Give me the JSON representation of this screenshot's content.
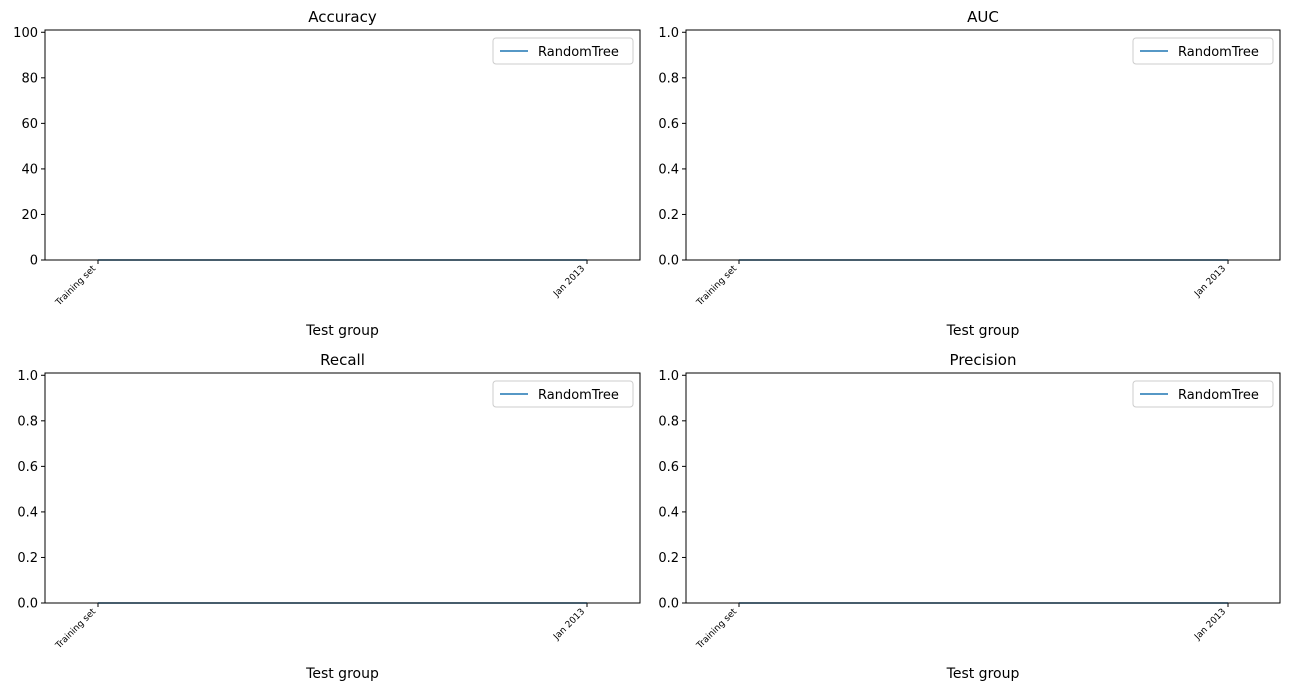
{
  "chart_data": [
    {
      "type": "line",
      "title": "Accuracy",
      "xlabel": "Test group",
      "ylabel": "",
      "categories": [
        "Training set",
        "Jan 2013"
      ],
      "yticks": [
        0,
        20,
        40,
        60,
        80,
        100
      ],
      "ytick_labels": [
        "0",
        "20",
        "40",
        "60",
        "80",
        "100"
      ],
      "ylim": [
        0,
        101
      ],
      "series": [
        {
          "name": "RandomTree",
          "values": [
            0,
            0
          ],
          "color": "#1f77b4"
        }
      ],
      "legend": "upper-right",
      "grid": false
    },
    {
      "type": "line",
      "title": "AUC",
      "xlabel": "Test group",
      "ylabel": "",
      "categories": [
        "Training set",
        "Jan 2013"
      ],
      "yticks": [
        0,
        0.2,
        0.4,
        0.6,
        0.8,
        1.0
      ],
      "ytick_labels": [
        "0.0",
        "0.2",
        "0.4",
        "0.6",
        "0.8",
        "1.0"
      ],
      "ylim": [
        0,
        1.01
      ],
      "series": [
        {
          "name": "RandomTree",
          "values": [
            0,
            0
          ],
          "color": "#1f77b4"
        }
      ],
      "legend": "upper-right",
      "grid": false
    },
    {
      "type": "line",
      "title": "Recall",
      "xlabel": "Test group",
      "ylabel": "",
      "categories": [
        "Training set",
        "Jan 2013"
      ],
      "yticks": [
        0,
        0.2,
        0.4,
        0.6,
        0.8,
        1.0
      ],
      "ytick_labels": [
        "0.0",
        "0.2",
        "0.4",
        "0.6",
        "0.8",
        "1.0"
      ],
      "ylim": [
        0,
        1.01
      ],
      "series": [
        {
          "name": "RandomTree",
          "values": [
            0,
            0
          ],
          "color": "#1f77b4"
        }
      ],
      "legend": "upper-right",
      "grid": false
    },
    {
      "type": "line",
      "title": "Precision",
      "xlabel": "Test group",
      "ylabel": "",
      "categories": [
        "Training set",
        "Jan 2013"
      ],
      "yticks": [
        0,
        0.2,
        0.4,
        0.6,
        0.8,
        1.0
      ],
      "ytick_labels": [
        "0.0",
        "0.2",
        "0.4",
        "0.6",
        "0.8",
        "1.0"
      ],
      "ylim": [
        0,
        1.01
      ],
      "series": [
        {
          "name": "RandomTree",
          "values": [
            0,
            0
          ],
          "color": "#1f77b4"
        }
      ],
      "legend": "upper-right",
      "grid": false
    }
  ]
}
